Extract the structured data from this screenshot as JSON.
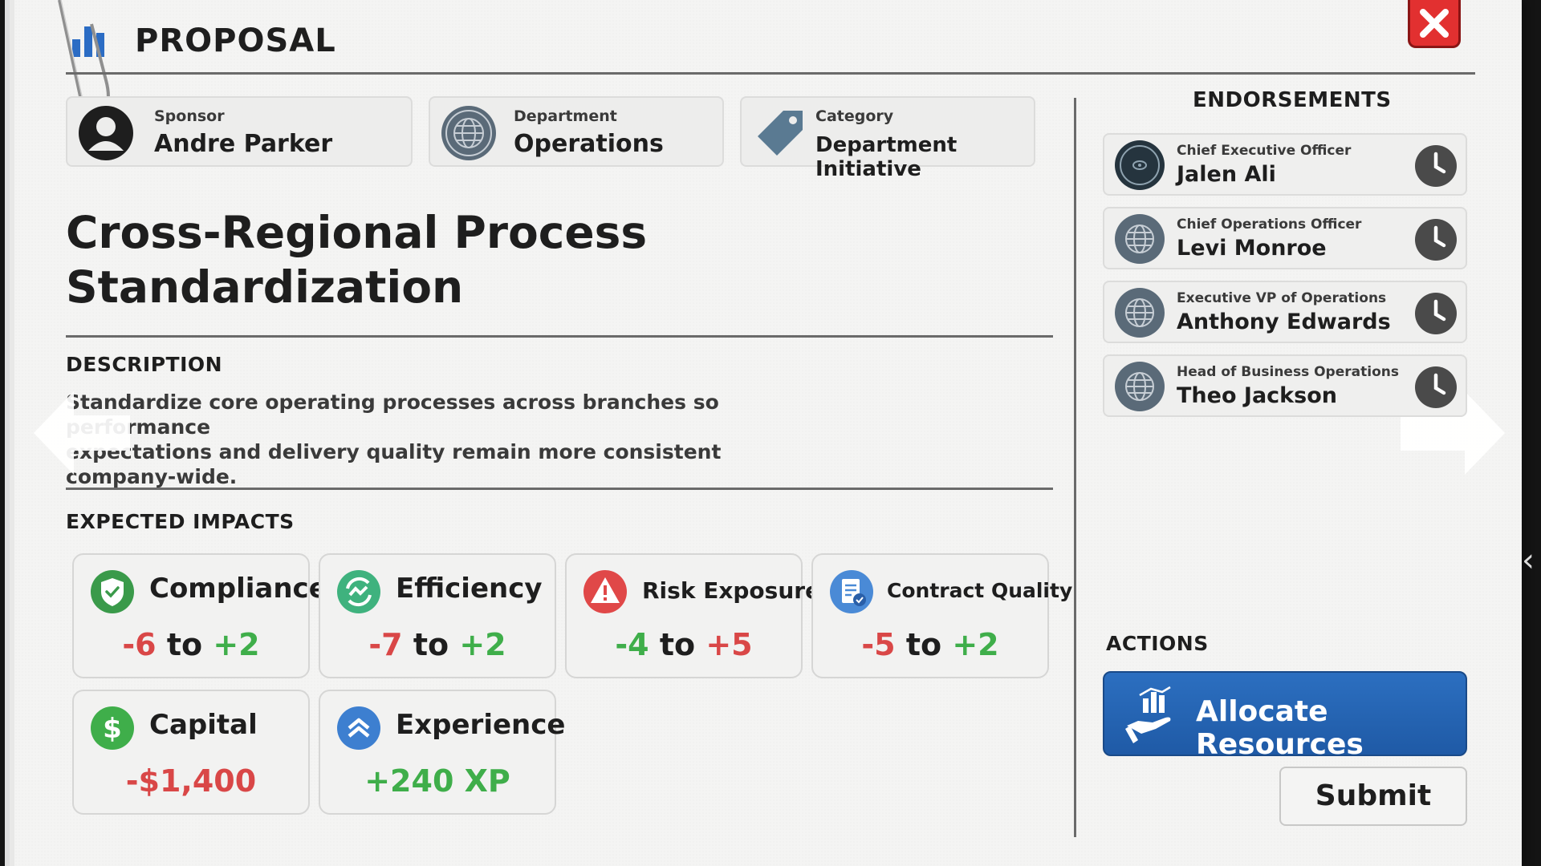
{
  "header": {
    "title": "PROPOSAL"
  },
  "info": {
    "sponsor": {
      "label": "Sponsor",
      "value": "Andre Parker"
    },
    "department": {
      "label": "Department",
      "value": "Operations"
    },
    "category": {
      "label": "Category",
      "value": "Department Initiative"
    }
  },
  "proposal": {
    "title_line1": "Cross-Regional Process",
    "title_line2": "Standardization"
  },
  "description": {
    "heading": "DESCRIPTION",
    "line1": "Standardize core operating processes across branches so performance",
    "line2": "expectations and delivery quality remain more consistent",
    "line3": "company-wide."
  },
  "impacts": {
    "heading": "EXPECTED IMPACTS",
    "to": "to",
    "compliance": {
      "name": "Compliance",
      "min": "-6",
      "max": "+2"
    },
    "efficiency": {
      "name": "Efficiency",
      "min": "-7",
      "max": "+2"
    },
    "risk": {
      "name": "Risk Exposure",
      "min": "-4",
      "max": "+5"
    },
    "contract": {
      "name": "Contract Quality",
      "min": "-5",
      "max": "+2"
    },
    "capital": {
      "name": "Capital",
      "value": "-$1,400"
    },
    "experience": {
      "name": "Experience",
      "value": "+240 XP"
    }
  },
  "endorsements": {
    "heading": "ENDORSEMENTS",
    "items": [
      {
        "role": "Chief Executive Officer",
        "name": "Jalen Ali"
      },
      {
        "role": "Chief Operations Officer",
        "name": "Levi Monroe"
      },
      {
        "role": "Executive VP of Operations",
        "name": "Anthony Edwards"
      },
      {
        "role": "Head of Business Operations",
        "name": "Theo Jackson"
      }
    ]
  },
  "actions": {
    "heading": "ACTIONS",
    "allocate_label": "Allocate Resources",
    "submit_label": "Submit"
  },
  "colors": {
    "negative": "#d94747",
    "positive": "#3fae4a",
    "primary_button": "#2463b3",
    "close_button": "#e23030"
  },
  "icons": [
    "bar-chart-icon",
    "paperclip-icon",
    "close-icon",
    "user-icon",
    "globe-seal-icon",
    "tag-icon",
    "shield-check-icon",
    "efficiency-icon",
    "warning-icon",
    "contract-icon",
    "dollar-icon",
    "chevron-up-icon",
    "clock-icon",
    "hand-chart-icon",
    "arrow-left-icon",
    "arrow-right-icon"
  ]
}
